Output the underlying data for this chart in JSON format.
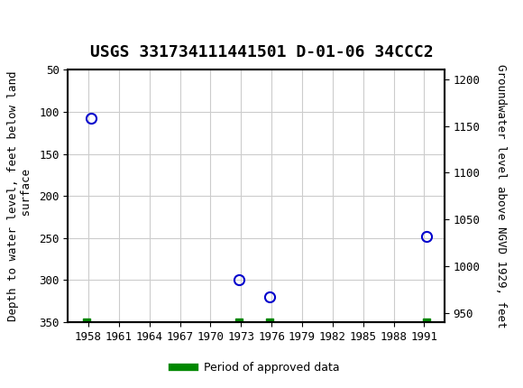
{
  "title": "USGS 331734111441501 D-01-06 34CCC2",
  "header_color": "#1a6b3c",
  "background_color": "#ffffff",
  "plot_bg_color": "#ffffff",
  "grid_color": "#cccccc",
  "data_points": [
    {
      "year": 1958.3,
      "depth": 108
    },
    {
      "year": 1972.8,
      "depth": 300
    },
    {
      "year": 1975.8,
      "depth": 320
    },
    {
      "year": 1991.2,
      "depth": 248
    }
  ],
  "approved_data_markers": [
    {
      "year": 1957.8,
      "depth": 350
    },
    {
      "year": 1972.8,
      "depth": 350
    },
    {
      "year": 1975.8,
      "depth": 350
    },
    {
      "year": 1991.2,
      "depth": 350
    }
  ],
  "xlim": [
    1956,
    1993
  ],
  "ylim_left": [
    350,
    50
  ],
  "ylim_right": [
    940,
    1210
  ],
  "xticks": [
    1958,
    1961,
    1964,
    1967,
    1970,
    1973,
    1976,
    1979,
    1982,
    1985,
    1988,
    1991
  ],
  "yticks_left": [
    50,
    100,
    150,
    200,
    250,
    300,
    350
  ],
  "yticks_right": [
    950,
    1000,
    1050,
    1100,
    1150,
    1200
  ],
  "ylabel_left": "Depth to water level, feet below land\n surface",
  "ylabel_right": "Groundwater level above NGVD 1929, feet",
  "xlabel": "",
  "legend_label": "Period of approved data",
  "point_color": "#0000cc",
  "approved_color": "#008800",
  "marker_size": 8,
  "approved_marker_size": 6
}
